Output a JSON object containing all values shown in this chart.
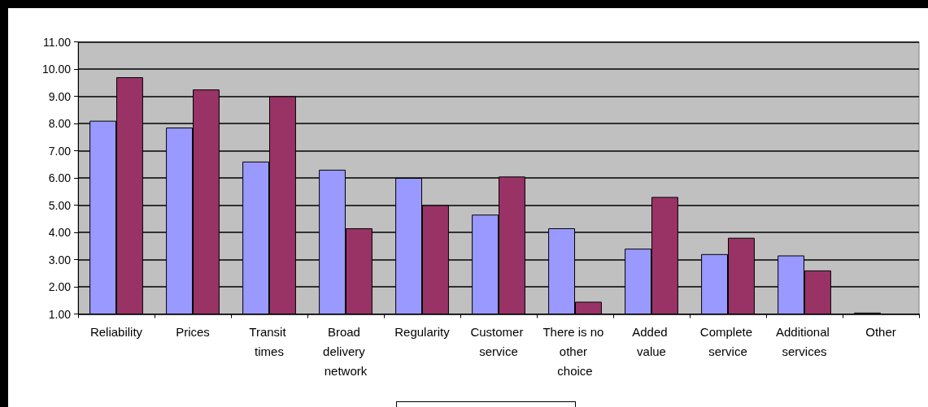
{
  "chart_data": {
    "type": "bar",
    "categories": [
      "Reliability",
      "Prices",
      "Transit times",
      "Broad delivery network",
      "Regularity",
      "Customer service",
      "There is no other choice",
      "Added value",
      "Complete service",
      "Additional services",
      "Other"
    ],
    "series": [
      {
        "color": "#9999ff",
        "values": [
          8.1,
          7.85,
          6.6,
          6.3,
          6.0,
          4.65,
          4.15,
          3.4,
          3.2,
          3.15,
          1.05
        ]
      },
      {
        "color": "#993366",
        "values": [
          9.7,
          9.25,
          9.0,
          4.15,
          5.0,
          6.05,
          1.45,
          5.3,
          3.8,
          2.6,
          null
        ]
      }
    ],
    "ylim": [
      1,
      11
    ],
    "yticks": [
      {
        "value": 1,
        "label": "1.00"
      },
      {
        "value": 2,
        "label": "2.00"
      },
      {
        "value": 3,
        "label": "3.00"
      },
      {
        "value": 4,
        "label": "4.00"
      },
      {
        "value": 5,
        "label": "5.00"
      },
      {
        "value": 6,
        "label": "6.00"
      },
      {
        "value": 7,
        "label": "7.00"
      },
      {
        "value": 8,
        "label": "8.00"
      },
      {
        "value": 9,
        "label": "9.00"
      },
      {
        "value": 10,
        "label": "10.00"
      },
      {
        "value": 11,
        "label": "11.00"
      }
    ],
    "grid": "y"
  }
}
